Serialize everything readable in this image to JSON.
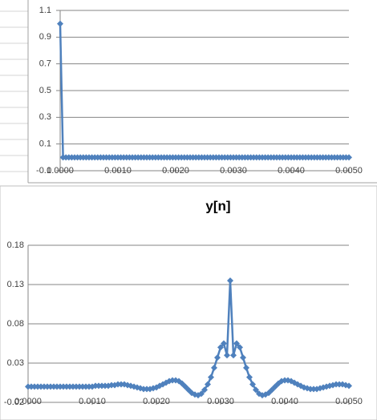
{
  "chart_data": [
    {
      "type": "line",
      "color": "#4f81bd",
      "grid": true,
      "x": [
        0,
        5e-05,
        0.0001,
        0.00015,
        0.0002,
        0.00025,
        0.0003,
        0.00035,
        0.0004,
        0.00045,
        0.0005,
        0.00055,
        0.0006,
        0.00065,
        0.0007,
        0.00075,
        0.0008,
        0.00085,
        0.0009,
        0.00095,
        0.001,
        0.00105,
        0.0011,
        0.00115,
        0.0012,
        0.00125,
        0.0013,
        0.00135,
        0.0014,
        0.00145,
        0.0015,
        0.00155,
        0.0016,
        0.00165,
        0.0017,
        0.00175,
        0.0018,
        0.00185,
        0.0019,
        0.00195,
        0.002,
        0.00205,
        0.0021,
        0.00215,
        0.0022,
        0.00225,
        0.0023,
        0.00235,
        0.0024,
        0.00245,
        0.0025,
        0.00255,
        0.0026,
        0.00265,
        0.0027,
        0.00275,
        0.0028,
        0.00285,
        0.0029,
        0.00295,
        0.003,
        0.00305,
        0.0031,
        0.00315,
        0.0032,
        0.00325,
        0.0033,
        0.00335,
        0.0034,
        0.00345,
        0.0035,
        0.00355,
        0.0036,
        0.00365,
        0.0037,
        0.00375,
        0.0038,
        0.00385,
        0.0039,
        0.00395,
        0.004,
        0.00405,
        0.0041,
        0.00415,
        0.0042,
        0.00425,
        0.0043,
        0.00435,
        0.0044,
        0.00445,
        0.0045,
        0.00455,
        0.0046,
        0.00465,
        0.0047,
        0.00475,
        0.0048,
        0.00485,
        0.0049,
        0.00495,
        0.005
      ],
      "values": [
        1,
        0,
        0,
        0,
        0,
        0,
        0,
        0,
        0,
        0,
        0,
        0,
        0,
        0,
        0,
        0,
        0,
        0,
        0,
        0,
        0,
        0,
        0,
        0,
        0,
        0,
        0,
        0,
        0,
        0,
        0,
        0,
        0,
        0,
        0,
        0,
        0,
        0,
        0,
        0,
        0,
        0,
        0,
        0,
        0,
        0,
        0,
        0,
        0,
        0,
        0,
        0,
        0,
        0,
        0,
        0,
        0,
        0,
        0,
        0,
        0,
        0,
        0,
        0,
        0,
        0,
        0,
        0,
        0,
        0,
        0,
        0,
        0,
        0,
        0,
        0,
        0,
        0,
        0,
        0,
        0,
        0,
        0,
        0,
        0,
        0,
        0,
        0,
        0,
        0,
        0,
        0,
        0,
        0,
        0,
        0,
        0,
        0,
        0,
        0,
        0
      ],
      "xlim": [
        0,
        0.005
      ],
      "xticks": [
        {
          "value": 0,
          "label": "0.0000"
        },
        {
          "value": 0.001,
          "label": "0.0010"
        },
        {
          "value": 0.002,
          "label": "0.0020"
        },
        {
          "value": 0.003,
          "label": "0.0030"
        },
        {
          "value": 0.004,
          "label": "0.0040"
        },
        {
          "value": 0.005,
          "label": "0.0050"
        }
      ],
      "ylim": [
        -0.1,
        1.1
      ],
      "yticks": [
        -0.1,
        0.1,
        0.3,
        0.5,
        0.7,
        0.9,
        1.1
      ]
    },
    {
      "type": "line",
      "title": "y[n]",
      "color": "#4f81bd",
      "grid": true,
      "x": [
        0,
        5e-05,
        0.0001,
        0.00015,
        0.0002,
        0.00025,
        0.0003,
        0.00035,
        0.0004,
        0.00045,
        0.0005,
        0.00055,
        0.0006,
        0.00065,
        0.0007,
        0.00075,
        0.0008,
        0.00085,
        0.0009,
        0.00095,
        0.001,
        0.00105,
        0.0011,
        0.00115,
        0.0012,
        0.00125,
        0.0013,
        0.00135,
        0.0014,
        0.00145,
        0.0015,
        0.00155,
        0.0016,
        0.00165,
        0.0017,
        0.00175,
        0.0018,
        0.00185,
        0.0019,
        0.00195,
        0.002,
        0.00205,
        0.0021,
        0.00215,
        0.0022,
        0.00225,
        0.0023,
        0.00235,
        0.0024,
        0.00245,
        0.0025,
        0.00255,
        0.0026,
        0.00265,
        0.0027,
        0.00275,
        0.0028,
        0.00285,
        0.0029,
        0.00295,
        0.003,
        0.00305,
        0.0031,
        0.00315,
        0.0032,
        0.00325,
        0.0033,
        0.00335,
        0.0034,
        0.00345,
        0.0035,
        0.00355,
        0.0036,
        0.00365,
        0.0037,
        0.00375,
        0.0038,
        0.00385,
        0.0039,
        0.00395,
        0.004,
        0.00405,
        0.0041,
        0.00415,
        0.0042,
        0.00425,
        0.0043,
        0.00435,
        0.0044,
        0.00445,
        0.0045,
        0.00455,
        0.0046,
        0.00465,
        0.0047,
        0.00475,
        0.0048,
        0.00485,
        0.0049,
        0.00495,
        0.005
      ],
      "values": [
        0,
        0,
        0,
        0,
        0,
        0,
        0,
        0,
        0,
        0,
        0,
        0,
        0,
        0,
        0,
        0,
        0,
        0,
        0,
        0,
        0,
        0.001,
        0.001,
        0.001,
        0.001,
        0.001,
        0.002,
        0.002,
        0.003,
        0.003,
        0.003,
        0.002,
        0.001,
        0,
        -0.001,
        -0.002,
        -0.003,
        -0.003,
        -0.003,
        -0.002,
        -0.001,
        0.001,
        0.003,
        0.005,
        0.007,
        0.008,
        0.008,
        0.007,
        0.004,
        0,
        -0.004,
        -0.008,
        -0.01,
        -0.011,
        -0.009,
        -0.004,
        0.003,
        0.012,
        0.024,
        0.037,
        0.05,
        0.055,
        0.04,
        0.135,
        0.04,
        0.055,
        0.05,
        0.037,
        0.024,
        0.012,
        0.003,
        -0.004,
        -0.009,
        -0.011,
        -0.01,
        -0.008,
        -0.004,
        0,
        0.004,
        0.007,
        0.008,
        0.008,
        0.007,
        0.005,
        0.003,
        0.001,
        -0.001,
        -0.002,
        -0.003,
        -0.003,
        -0.003,
        -0.002,
        -0.001,
        0,
        0.001,
        0.002,
        0.003,
        0.003,
        0.003,
        0.002,
        0.001
      ],
      "xlim": [
        0,
        0.005
      ],
      "xticks": [
        {
          "value": 0,
          "label": "0.0000"
        },
        {
          "value": 0.001,
          "label": "0.0010"
        },
        {
          "value": 0.002,
          "label": "0.0020"
        },
        {
          "value": 0.003,
          "label": "0.0030"
        },
        {
          "value": 0.004,
          "label": "0.0040"
        },
        {
          "value": 0.005,
          "label": "0.0050"
        }
      ],
      "ylim": [
        -0.02,
        0.18
      ],
      "yticks": [
        -0.02,
        0.03,
        0.08,
        0.13,
        0.18
      ]
    }
  ]
}
